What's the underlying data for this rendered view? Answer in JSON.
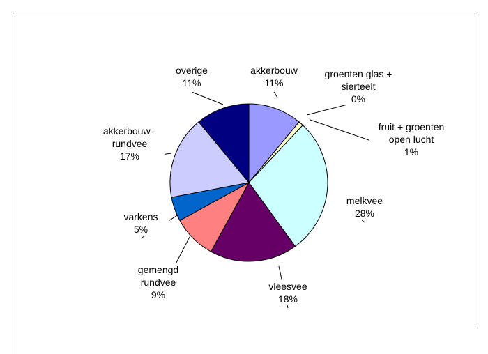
{
  "chart_data": {
    "type": "pie",
    "categories": [
      "akkerbouw",
      "groenten glas + sierteelt",
      "fruit + groenten open lucht",
      "melkvee",
      "vleesvee",
      "gemengd rundvee",
      "varkens",
      "akkerbouw - rundvee",
      "overige"
    ],
    "values": [
      11,
      0,
      1,
      28,
      18,
      9,
      5,
      17,
      11
    ],
    "value_labels": [
      "11%",
      "0%",
      "1%",
      "28%",
      "18%",
      "9%",
      "5%",
      "17%",
      "11%"
    ],
    "colors": [
      "#9999ff",
      "#ffffcc",
      "#ffffcc",
      "#ccffff",
      "#660066",
      "#ff8080",
      "#0066cc",
      "#ccccff",
      "#000080"
    ]
  }
}
